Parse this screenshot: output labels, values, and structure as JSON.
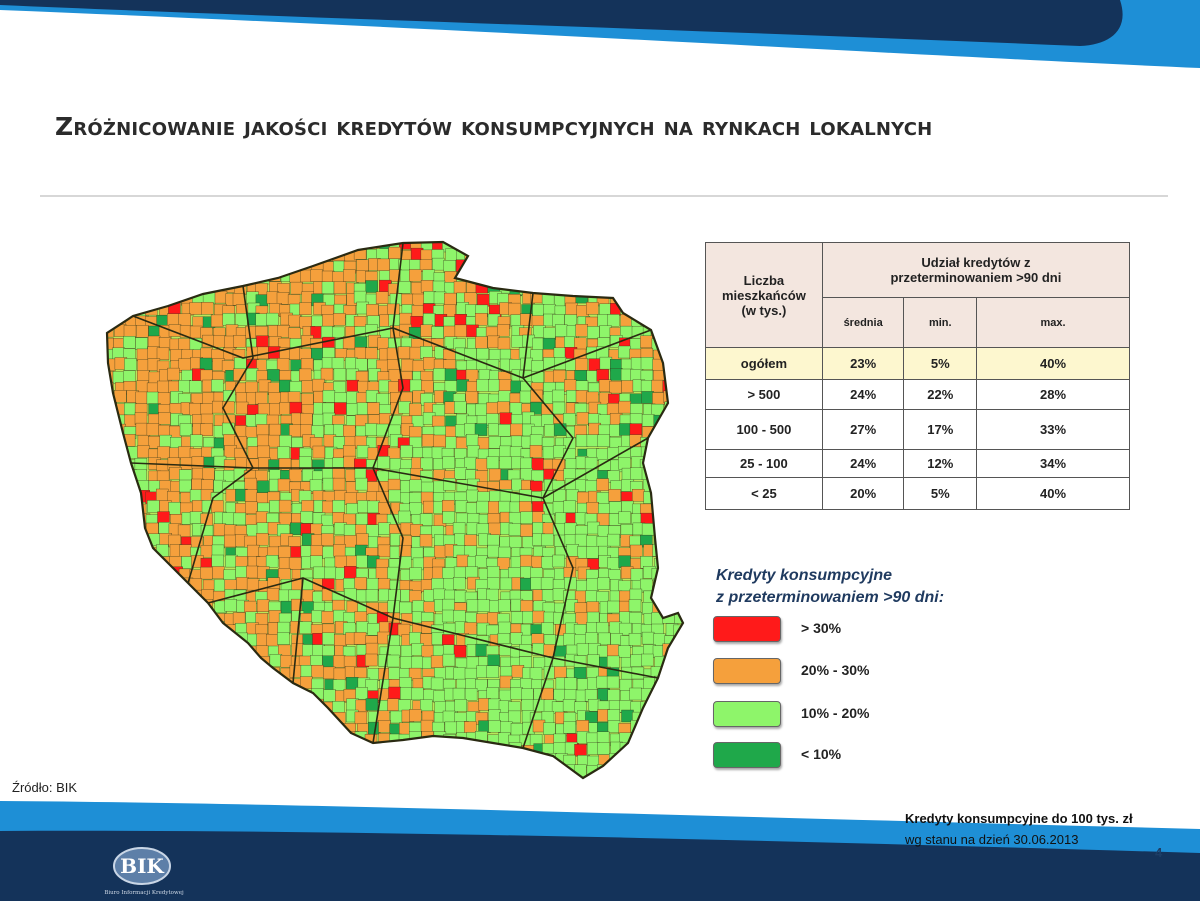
{
  "slide": {
    "title": "Zróżnicowanie jakości kredytów konsumpcyjnych na rynkach lokalnych",
    "source_note": "Źródło: BIK",
    "page_number": "4"
  },
  "table": {
    "header_group": "Liczba mieszkańców (w tys.)",
    "header_share": "Udział kredytów z przeterminowaniem >90 dni",
    "sub_headers": [
      "średnia",
      "min.",
      "max."
    ],
    "rows": [
      {
        "group": "ogółem",
        "mean": "23%",
        "min": "5%",
        "max": "40%"
      },
      {
        "group": "> 500",
        "mean": "24%",
        "min": "22%",
        "max": "28%"
      },
      {
        "group": "100 - 500",
        "mean": "27%",
        "min": "17%",
        "max": "33%"
      },
      {
        "group": "25 - 100",
        "mean": "24%",
        "min": "12%",
        "max": "34%"
      },
      {
        "group": "< 25",
        "mean": "20%",
        "min": "5%",
        "max": "40%"
      }
    ]
  },
  "legend": {
    "title_line1": "Kredyty konsumpcyjne",
    "title_line2": "z przeterminowaniem >90 dni:",
    "items": [
      {
        "label": "> 30%",
        "color": "#ff1a1a"
      },
      {
        "label": "20% - 30%",
        "color": "#f5a03c"
      },
      {
        "label": "10% - 20%",
        "color": "#8ef56a"
      },
      {
        "label": "< 10%",
        "color": "#1fa84a"
      }
    ]
  },
  "footnote": {
    "line1": "Kredyty konsumpcyjne do 100 tys. zł",
    "line2": "wg stanu na dzień 30.06.2013"
  },
  "logo": {
    "text": "BIK",
    "caption": "Biuro Informacji Kredytowej"
  },
  "map": {
    "colors": {
      "over_30": "#ff1a1a",
      "from_20_to_30": "#f5a03c",
      "from_10_to_20": "#8ef56a",
      "under_10": "#1fa84a",
      "background_fill": "#b9e85a",
      "border": "#3a3a1a"
    }
  },
  "theme": {
    "banner_dark": "#14335a",
    "banner_light": "#1e8fd6",
    "title_color": "#2b2b2b"
  }
}
